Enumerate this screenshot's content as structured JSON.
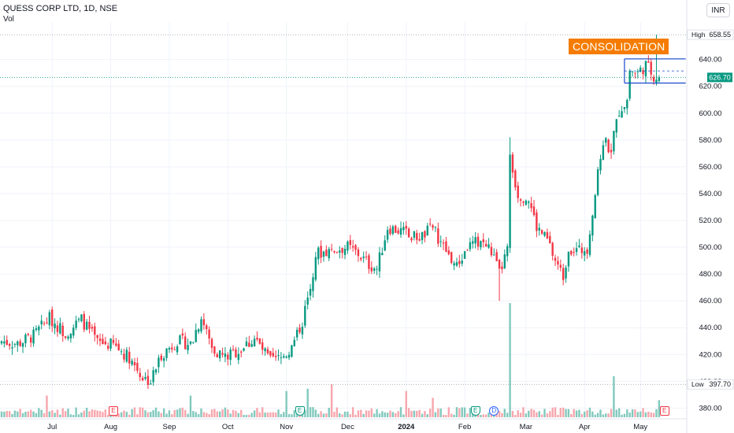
{
  "header": {
    "symbol": "QUESS CORP LTD, 1D, NSE",
    "volume_label": "Vol"
  },
  "currency_button": "INR",
  "annotation": "CONSOLIDATION",
  "colors": {
    "up": "#089981",
    "down": "#f23645",
    "vol_up": "#81c9bd",
    "vol_down": "#f7a6ad",
    "channel": "#1848cc",
    "accent": "#f57c00"
  },
  "chart_data": {
    "type": "candlestick",
    "ylim": [
      372,
      668
    ],
    "grid": true,
    "y_ticks": [
      380,
      400,
      420,
      440,
      460,
      480,
      500,
      520,
      540,
      560,
      580,
      600,
      620,
      640
    ],
    "x_ticks": [
      "Jul",
      "Aug",
      "Sep",
      "Oct",
      "Nov",
      "Dec",
      "2024",
      "Feb",
      "Mar",
      "Apr",
      "May"
    ],
    "x_tick_session": [
      19,
      41,
      63,
      85,
      107,
      130,
      152,
      174,
      197,
      219,
      240
    ],
    "high_label": "High",
    "high_value": 658.55,
    "low_label": "Low",
    "low_value": 397.7,
    "last_price": 626.7,
    "session_count": 248,
    "close_series": [
      {
        "session": 0,
        "close": 430
      },
      {
        "session": 6,
        "close": 428
      },
      {
        "session": 12,
        "close": 434
      },
      {
        "session": 18,
        "close": 447
      },
      {
        "session": 24,
        "close": 436
      },
      {
        "session": 30,
        "close": 446
      },
      {
        "session": 36,
        "close": 429
      },
      {
        "session": 42,
        "close": 427
      },
      {
        "session": 48,
        "close": 418
      },
      {
        "session": 53,
        "close": 403
      },
      {
        "session": 56,
        "close": 400
      },
      {
        "session": 60,
        "close": 420
      },
      {
        "session": 66,
        "close": 430
      },
      {
        "session": 71,
        "close": 428
      },
      {
        "session": 75,
        "close": 448
      },
      {
        "session": 79,
        "close": 425
      },
      {
        "session": 84,
        "close": 418
      },
      {
        "session": 90,
        "close": 424
      },
      {
        "session": 95,
        "close": 432
      },
      {
        "session": 101,
        "close": 415
      },
      {
        "session": 105,
        "close": 417
      },
      {
        "session": 109,
        "close": 425
      },
      {
        "session": 113,
        "close": 445
      },
      {
        "session": 116,
        "close": 470
      },
      {
        "session": 118,
        "close": 495
      },
      {
        "session": 124,
        "close": 498
      },
      {
        "session": 130,
        "close": 500
      },
      {
        "session": 134,
        "close": 495
      },
      {
        "session": 138,
        "close": 487
      },
      {
        "session": 141,
        "close": 484
      },
      {
        "session": 145,
        "close": 515
      },
      {
        "session": 150,
        "close": 512
      },
      {
        "session": 154,
        "close": 508
      },
      {
        "session": 158,
        "close": 508
      },
      {
        "session": 162,
        "close": 515
      },
      {
        "session": 166,
        "close": 500
      },
      {
        "session": 171,
        "close": 485
      },
      {
        "session": 175,
        "close": 500
      },
      {
        "session": 180,
        "close": 505
      },
      {
        "session": 184,
        "close": 497
      },
      {
        "session": 187,
        "close": 480
      },
      {
        "session": 190,
        "close": 498
      },
      {
        "session": 191,
        "close": 565
      },
      {
        "session": 194,
        "close": 540
      },
      {
        "session": 198,
        "close": 536
      },
      {
        "session": 201,
        "close": 515
      },
      {
        "session": 205,
        "close": 505
      },
      {
        "session": 208,
        "close": 490
      },
      {
        "session": 211,
        "close": 478
      },
      {
        "session": 213,
        "close": 500
      },
      {
        "session": 217,
        "close": 497
      },
      {
        "session": 220,
        "close": 500
      },
      {
        "session": 223,
        "close": 540
      },
      {
        "session": 226,
        "close": 580
      },
      {
        "session": 229,
        "close": 573
      },
      {
        "session": 232,
        "close": 602
      },
      {
        "session": 235,
        "close": 610
      },
      {
        "session": 236,
        "close": 632
      },
      {
        "session": 239,
        "close": 630
      },
      {
        "session": 242,
        "close": 636
      },
      {
        "session": 245,
        "close": 628
      },
      {
        "session": 247,
        "close": 626.7
      }
    ],
    "volume_spikes": [
      {
        "session": 191,
        "volume": 1.0
      },
      {
        "session": 230,
        "volume": 0.36
      },
      {
        "session": 124,
        "volume": 0.29
      },
      {
        "session": 115,
        "volume": 0.25
      },
      {
        "session": 107,
        "volume": 0.23
      },
      {
        "session": 152,
        "volume": 0.23
      },
      {
        "session": 17,
        "volume": 0.19
      },
      {
        "session": 71,
        "volume": 0.19
      },
      {
        "session": 162,
        "volume": 0.17
      },
      {
        "session": 247,
        "volume": 0.15
      }
    ],
    "consolidation_channel": {
      "session_start": 234,
      "session_end": 257,
      "upper": 640.5,
      "lower": 622.5,
      "mid": 631.5
    },
    "event_badges": [
      {
        "session": 42,
        "label": "E",
        "kind": "e-red"
      },
      {
        "session": 112,
        "label": "E",
        "kind": "e-green"
      },
      {
        "session": 178,
        "label": "E",
        "kind": "e-green"
      },
      {
        "session": 185,
        "label": "D",
        "kind": "d-blue"
      },
      {
        "session": 249,
        "label": "E",
        "kind": "e-red"
      }
    ]
  }
}
